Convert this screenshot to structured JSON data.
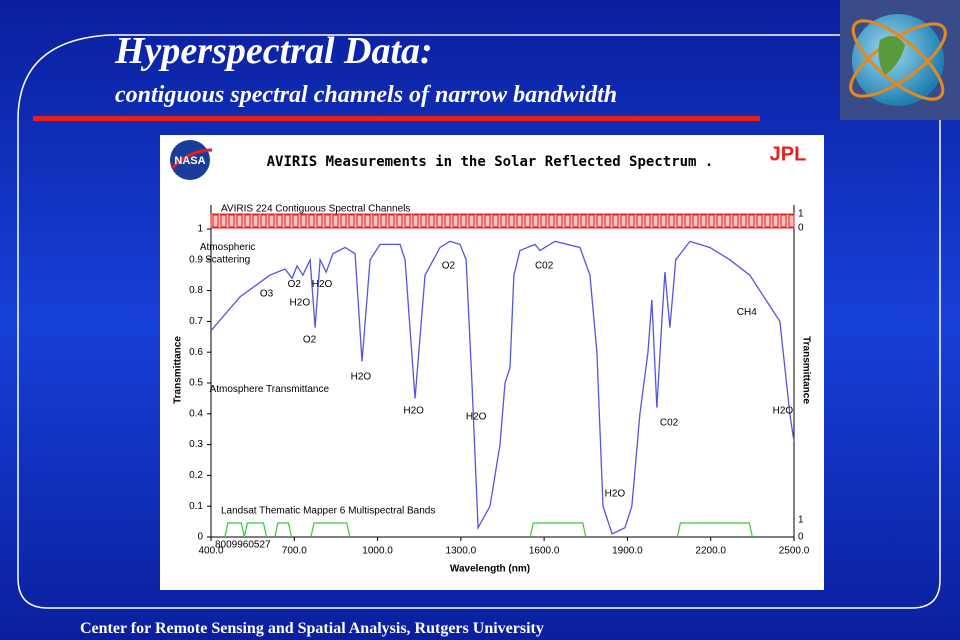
{
  "slide": {
    "title": "Hyperspectral Data:",
    "subtitle": "contiguous spectral channels of narrow bandwidth",
    "footer": "Center for Remote Sensing and Spatial Analysis, Rutgers University"
  },
  "chart_data": {
    "type": "line",
    "title": "AVIRIS Measurements in the Solar Reflected Spectrum .",
    "logos": [
      "NASA",
      "JPL"
    ],
    "x_label": "Wavelength (nm)",
    "y_label": "Transmittance",
    "y2_label": "Transmittance",
    "xlim": [
      400,
      2500
    ],
    "ylim": [
      0,
      1
    ],
    "xticks": [
      {
        "value": 400,
        "label": "400.0"
      },
      {
        "value": 700,
        "label": "700.0"
      },
      {
        "value": 1000,
        "label": "1000.0"
      },
      {
        "value": 1300,
        "label": "1300.0"
      },
      {
        "value": 1600,
        "label": "1600.0"
      },
      {
        "value": 1900,
        "label": "1900.0"
      },
      {
        "value": 2200,
        "label": "2200.0"
      },
      {
        "value": 2500,
        "label": "2500.0"
      }
    ],
    "yticks": [
      0,
      0.1,
      0.2,
      0.3,
      0.4,
      0.5,
      0.6,
      0.7,
      0.8,
      0.9,
      1
    ],
    "strip_ticks": [
      1,
      0
    ],
    "channels_label": "AVIRIS 224 Contiguous Spectral Channels",
    "bands_label": "Landsat Thematic Mapper 6 Multispectral Bands",
    "bands": [
      [
        450,
        520
      ],
      [
        520,
        600
      ],
      [
        630,
        690
      ],
      [
        760,
        900
      ],
      [
        1550,
        1750
      ],
      [
        2080,
        2350
      ]
    ],
    "bands_color": "#33cc33",
    "image_id": "8009960527",
    "series": [
      {
        "name": "Atmosphere Transmittance",
        "color": "#5555dd",
        "x": [
          400,
          505,
          612,
          667,
          692,
          710,
          731,
          757,
          775,
          793,
          815,
          839,
          883,
          919,
          944,
          973,
          1009,
          1081,
          1099,
          1135,
          1171,
          1225,
          1261,
          1297,
          1319,
          1340,
          1362,
          1405,
          1441,
          1459,
          1477,
          1491,
          1513,
          1567,
          1585,
          1639,
          1729,
          1765,
          1790,
          1812,
          1845,
          1891,
          1916,
          1945,
          1974,
          1988,
          2006,
          2024,
          2035,
          2053,
          2074,
          2125,
          2197,
          2269,
          2341,
          2377,
          2413,
          2449,
          2485,
          2500
        ],
        "values": [
          0.67,
          0.78,
          0.85,
          0.87,
          0.84,
          0.88,
          0.85,
          0.9,
          0.68,
          0.9,
          0.86,
          0.92,
          0.94,
          0.92,
          0.57,
          0.9,
          0.95,
          0.95,
          0.9,
          0.45,
          0.85,
          0.94,
          0.96,
          0.95,
          0.9,
          0.5,
          0.03,
          0.1,
          0.3,
          0.5,
          0.55,
          0.85,
          0.93,
          0.95,
          0.93,
          0.96,
          0.94,
          0.85,
          0.6,
          0.1,
          0.01,
          0.03,
          0.1,
          0.4,
          0.6,
          0.77,
          0.42,
          0.7,
          0.86,
          0.68,
          0.9,
          0.96,
          0.94,
          0.9,
          0.85,
          0.8,
          0.75,
          0.7,
          0.4,
          0.31
        ]
      }
    ],
    "annotations": [
      {
        "text": "Atmospheric",
        "x": 460,
        "y": 0.94
      },
      {
        "text": "Scattering",
        "x": 460,
        "y": 0.9
      },
      {
        "text": "O3",
        "x": 600,
        "y": 0.79
      },
      {
        "text": "O2",
        "x": 700,
        "y": 0.82
      },
      {
        "text": "H2O",
        "x": 720,
        "y": 0.76
      },
      {
        "text": "H2O",
        "x": 800,
        "y": 0.82
      },
      {
        "text": "O2",
        "x": 755,
        "y": 0.64
      },
      {
        "text": "H2O",
        "x": 940,
        "y": 0.52
      },
      {
        "text": "H2O",
        "x": 1130,
        "y": 0.41
      },
      {
        "text": "O2",
        "x": 1255,
        "y": 0.88
      },
      {
        "text": "H2O",
        "x": 1355,
        "y": 0.39
      },
      {
        "text": "C02",
        "x": 1600,
        "y": 0.88
      },
      {
        "text": "H2O",
        "x": 1855,
        "y": 0.14
      },
      {
        "text": "C02",
        "x": 2050,
        "y": 0.37
      },
      {
        "text": "CH4",
        "x": 2330,
        "y": 0.73
      },
      {
        "text": "H2O",
        "x": 2460,
        "y": 0.41
      },
      {
        "text": "Atmosphere Transmittance",
        "x": 610,
        "y": 0.48
      }
    ]
  }
}
